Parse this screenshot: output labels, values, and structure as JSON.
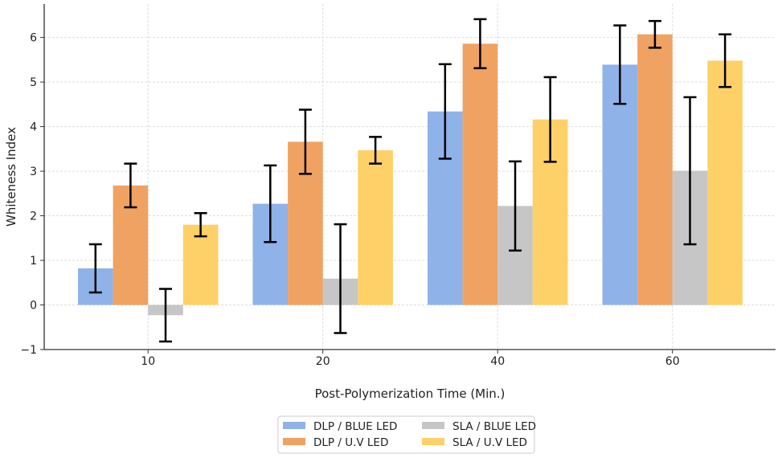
{
  "chart_data": {
    "type": "bar",
    "title": "",
    "xlabel": "Post-Polymerization Time (Min.)",
    "ylabel": "Whiteness Index",
    "categories": [
      "10",
      "20",
      "40",
      "60"
    ],
    "ylim": [
      -1,
      6.75
    ],
    "yticks": [
      -1,
      0,
      1,
      2,
      3,
      4,
      5,
      6
    ],
    "ytick_labels": [
      "−1",
      "0",
      "1",
      "2",
      "3",
      "4",
      "5",
      "6"
    ],
    "grid": true,
    "legend_placement": "bottom-center",
    "series": [
      {
        "name": "DLP / BLUE LED",
        "color": "#8fb2e8",
        "values": [
          0.82,
          2.27,
          4.34,
          5.39
        ],
        "errors": [
          0.54,
          0.86,
          1.06,
          0.88
        ]
      },
      {
        "name": "DLP / U.V LED",
        "color": "#f0a262",
        "values": [
          2.68,
          3.66,
          5.86,
          6.07
        ],
        "errors": [
          0.49,
          0.72,
          0.55,
          0.3
        ]
      },
      {
        "name": "SLA / BLUE LED",
        "color": "#c6c6c6",
        "values": [
          -0.23,
          0.59,
          2.22,
          3.01
        ],
        "errors": [
          0.59,
          1.22,
          1.0,
          1.65
        ]
      },
      {
        "name": "SLA / U.V LED",
        "color": "#fdd168",
        "values": [
          1.8,
          3.47,
          4.16,
          5.48
        ],
        "errors": [
          0.26,
          0.3,
          0.95,
          0.59
        ]
      }
    ]
  }
}
